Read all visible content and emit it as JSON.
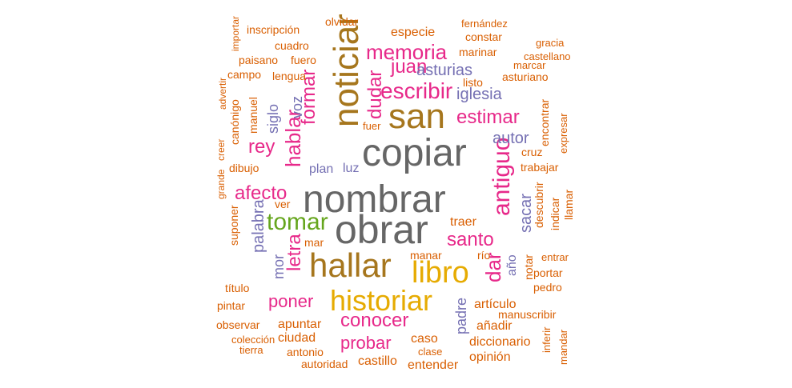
{
  "palette": {
    "gray": "#666666",
    "gold": "#a6761d",
    "yellow": "#e6ab02",
    "pink": "#e7298a",
    "purple": "#7570b3",
    "green": "#66a61e",
    "orange": "#d95f02"
  },
  "words": [
    "nombrar",
    "obrar",
    "copiar",
    "noticiar",
    "hallar",
    "san",
    "libro",
    "historiar",
    "antiguo",
    "tomar",
    "memoria",
    "escribir",
    "dudar",
    "juan",
    "formar",
    "estimar",
    "santo",
    "afecto",
    "conocer",
    "dar",
    "hablar",
    "letra",
    "rey",
    "probar",
    "poner",
    "autor",
    "asturias",
    "iglesia",
    "sacar",
    "palabra",
    "siglo",
    "voz",
    "mor",
    "plan",
    "luz",
    "año",
    "padre",
    "inscripción",
    "olvidar",
    "especie",
    "fernández",
    "constar",
    "cuadro",
    "gracia",
    "importar",
    "paisano",
    "fuero",
    "marinar",
    "castellano",
    "marcar",
    "campo",
    "lengua",
    "asturiano",
    "listo",
    "advertir",
    "manuel",
    "canónigo",
    "fuer",
    "encontrar",
    "expresar",
    "creer",
    "grande",
    "dibujo",
    "cruz",
    "trabajar",
    "suponer",
    "ver",
    "descubrir",
    "indicar",
    "llamar",
    "traer",
    "mar",
    "notar",
    "manar",
    "río",
    "entrar",
    "título",
    "portar",
    "pedro",
    "pintar",
    "artículo",
    "manuscribir",
    "observar",
    "apuntar",
    "añadir",
    "colección",
    "ciudad",
    "caso",
    "diccionario",
    "tierra",
    "antonio",
    "clase",
    "inferir",
    "mandar",
    "opinión",
    "autoridad",
    "castillo",
    "entender"
  ]
}
